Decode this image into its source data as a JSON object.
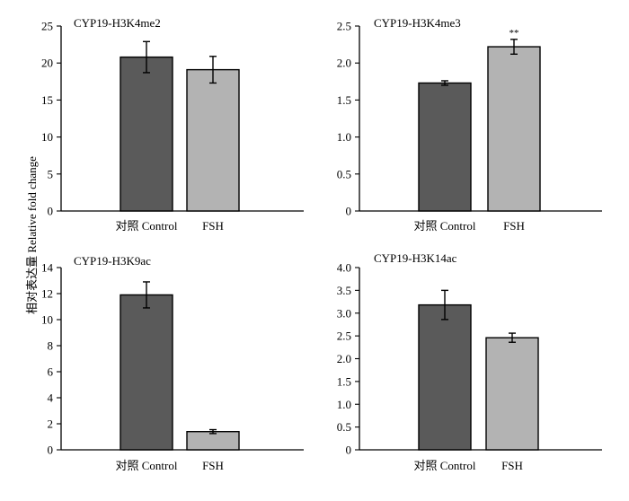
{
  "ylabel": "相对表达量 Relative fold change",
  "colors": {
    "control": "#5a5a5a",
    "fsh": "#b3b3b3"
  },
  "chart_data": [
    {
      "type": "bar",
      "title": "CYP19-H3K4me2",
      "categories": [
        "对照 Control",
        "FSH"
      ],
      "values": [
        20.8,
        19.1
      ],
      "errors": [
        2.1,
        1.8
      ],
      "annotations": [
        "",
        ""
      ],
      "ylim": [
        0,
        25
      ],
      "yticks": [
        0,
        5,
        10,
        15,
        20,
        25
      ],
      "ytick_labels": [
        "0",
        "5",
        "10",
        "15",
        "20",
        "25"
      ]
    },
    {
      "type": "bar",
      "title": "CYP19-H3K4me3",
      "categories": [
        "对照 Control",
        "FSH"
      ],
      "values": [
        1.73,
        2.22
      ],
      "errors": [
        0.03,
        0.1
      ],
      "annotations": [
        "",
        "**"
      ],
      "ylim": [
        0,
        2.5
      ],
      "yticks": [
        0,
        0.5,
        1.0,
        1.5,
        2.0,
        2.5
      ],
      "ytick_labels": [
        "0",
        "0.5",
        "1.0",
        "1.5",
        "2.0",
        "2.5"
      ]
    },
    {
      "type": "bar",
      "title": "CYP19-H3K9ac",
      "categories": [
        "对照 Control",
        "FSH"
      ],
      "values": [
        11.9,
        1.4
      ],
      "errors": [
        1.0,
        0.15
      ],
      "annotations": [
        "",
        ""
      ],
      "ylim": [
        0,
        14
      ],
      "yticks": [
        0,
        2,
        4,
        6,
        8,
        10,
        12,
        14
      ],
      "ytick_labels": [
        "0",
        "2",
        "4",
        "6",
        "8",
        "10",
        "12",
        "14"
      ]
    },
    {
      "type": "bar",
      "title": "CYP19-H3K14ac",
      "categories": [
        "对照 Control",
        "FSH"
      ],
      "values": [
        3.18,
        2.46
      ],
      "errors": [
        0.32,
        0.1
      ],
      "annotations": [
        "",
        ""
      ],
      "ylim": [
        0,
        4.0
      ],
      "yticks": [
        0,
        0.5,
        1.0,
        1.5,
        2.0,
        2.5,
        3.0,
        3.5,
        4.0
      ],
      "ytick_labels": [
        "0",
        "0.5",
        "1.0",
        "1.5",
        "2.0",
        "2.5",
        "3.0",
        "3.5",
        "4.0"
      ]
    }
  ]
}
